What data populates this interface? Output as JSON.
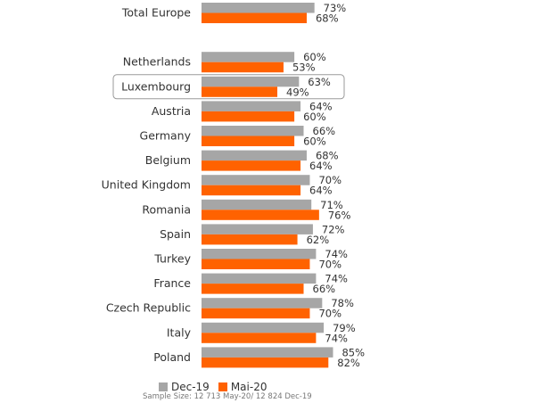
{
  "chart_data": {
    "type": "bar",
    "orientation": "horizontal",
    "categories": [
      "Total Europe",
      "",
      "Netherlands",
      "Luxembourg",
      "Austria",
      "Germany",
      "Belgium",
      "United Kingdom",
      "Romania",
      "Spain",
      "Turkey",
      "France",
      "Czech Republic",
      "Italy",
      "Poland"
    ],
    "series": [
      {
        "name": "Dec-19",
        "color": "#a6a6a6",
        "values": [
          73,
          null,
          60,
          63,
          64,
          66,
          68,
          70,
          71,
          72,
          74,
          74,
          78,
          79,
          85
        ],
        "labels": [
          "73%",
          "",
          "60%",
          "63%",
          "64%",
          "66%",
          "68%",
          "70%",
          "71%",
          "72%",
          "74%",
          "74%",
          "78%",
          "79%",
          "85%"
        ]
      },
      {
        "name": "Mai-20",
        "color": "#ff6200",
        "values": [
          68,
          null,
          53,
          49,
          60,
          60,
          64,
          64,
          76,
          62,
          70,
          66,
          70,
          74,
          82
        ],
        "labels": [
          "68%",
          "",
          "53%",
          "49%",
          "60%",
          "60%",
          "64%",
          "64%",
          "76%",
          "62%",
          "70%",
          "66%",
          "70%",
          "74%",
          "82%"
        ]
      }
    ],
    "highlight": "Luxembourg",
    "xlim": [
      0,
      100
    ],
    "legend_position": "bottom",
    "footnote": "Sample Size: 12 713 May-20/ 12 824 Dec-19"
  }
}
